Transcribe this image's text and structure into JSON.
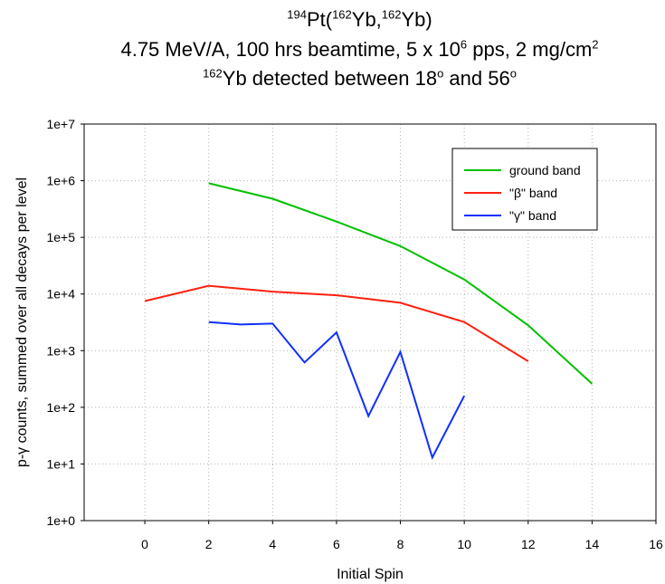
{
  "title": {
    "line1": {
      "sup1": "194",
      "text1": "Pt(",
      "sup2": "162",
      "text2": "Yb,",
      "sup3": "162",
      "text3": "Yb)"
    },
    "line2": {
      "text1": "4.75 MeV/A, 100 hrs beamtime, 5 x 10",
      "sup1": "6",
      "text2": " pps, 2 mg/cm",
      "sup2": "2"
    },
    "line3": {
      "sup1": "162",
      "text1": "Yb detected between 18",
      "sup2": "o",
      "text2": " and 56",
      "sup3": "o"
    }
  },
  "chart_data": {
    "type": "line",
    "title": "194Pt(162Yb,162Yb) 4.75 MeV/A, 100 hrs beamtime, 5 x 10^6 pps, 2 mg/cm^2 162Yb detected between 18o and 56o",
    "xlabel": "Initial Spin",
    "ylabel": "p-γ counts, summed over all decays per level",
    "xlim": [
      -1.9,
      16
    ],
    "ylim": [
      1,
      10000000
    ],
    "yscale": "log",
    "xticks": [
      0,
      2,
      4,
      6,
      8,
      10,
      12,
      14,
      16
    ],
    "xtick_labels": [
      "0",
      "2",
      "4",
      "6",
      "8",
      "10",
      "12",
      "14",
      "16"
    ],
    "yticks": [
      1,
      10,
      100,
      1000,
      10000,
      100000,
      1000000,
      10000000
    ],
    "ytick_labels": [
      "1e+0",
      "1e+1",
      "1e+2",
      "1e+3",
      "1e+4",
      "1e+5",
      "1e+6",
      "1e+7"
    ],
    "grid": true,
    "legend_position": "top-right",
    "series": [
      {
        "name": "ground band",
        "color": "#00c000",
        "x": [
          2,
          4,
          6,
          8,
          10,
          12,
          14
        ],
        "y": [
          900000,
          480000,
          190000,
          70000,
          18000,
          2800,
          260
        ]
      },
      {
        "name": "\"β\" band",
        "color": "#ff2010",
        "x": [
          0,
          2,
          4,
          6,
          8,
          10,
          12
        ],
        "y": [
          7500,
          14000,
          11000,
          9500,
          7000,
          3200,
          650
        ]
      },
      {
        "name": "\"γ\" band",
        "color": "#1030ff",
        "x": [
          2,
          3,
          4,
          5,
          6,
          7,
          8,
          9,
          10
        ],
        "y": [
          3200,
          2900,
          3000,
          620,
          2100,
          70,
          950,
          13,
          160
        ]
      }
    ]
  }
}
